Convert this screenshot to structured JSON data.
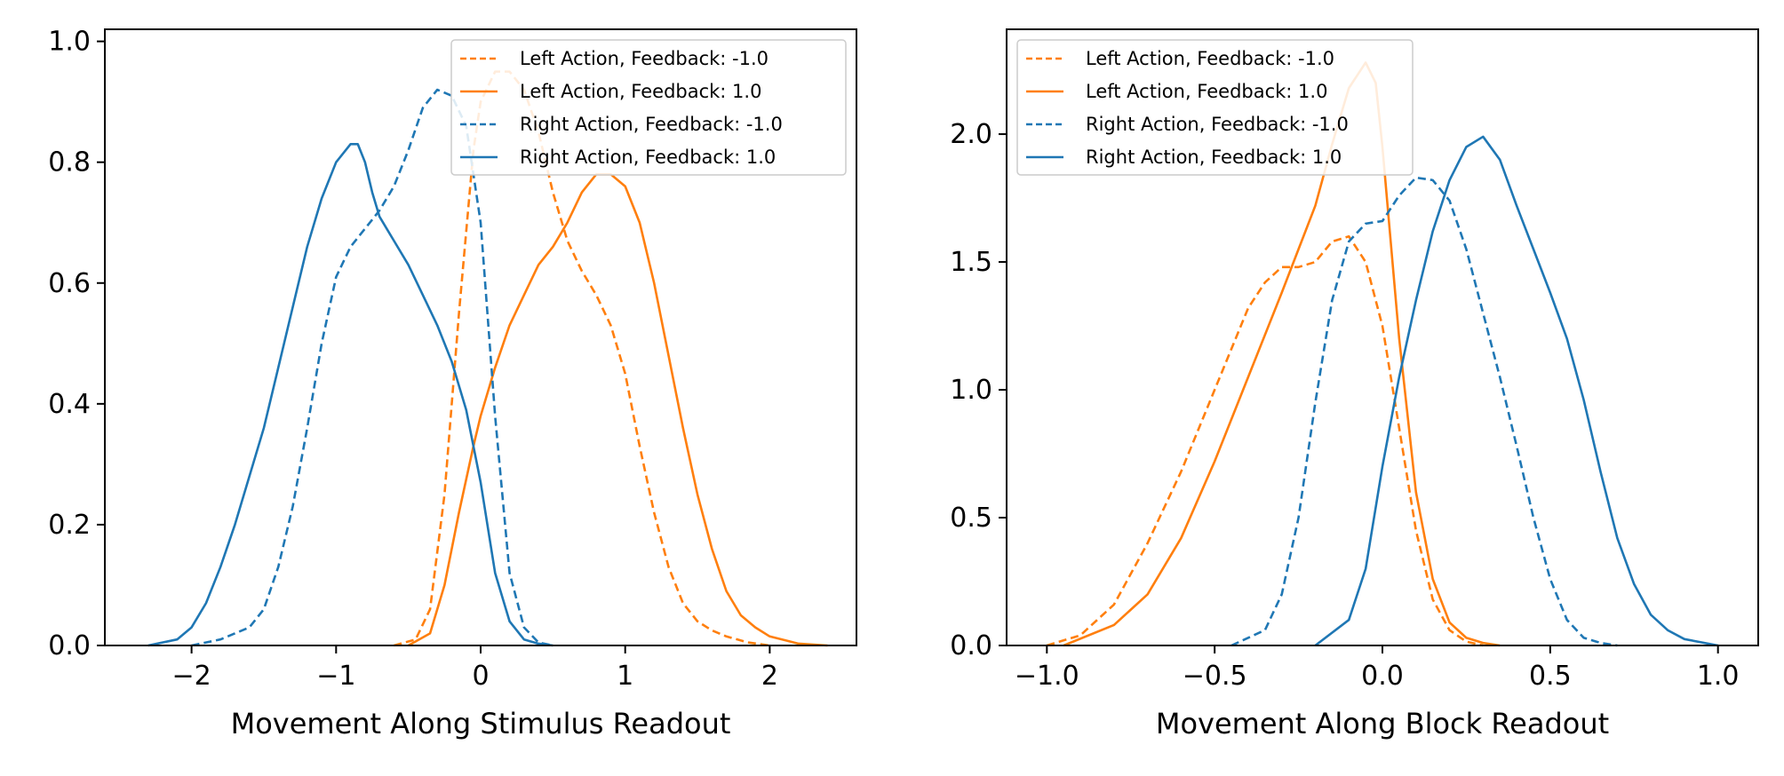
{
  "chart_data": [
    {
      "type": "line",
      "title": "",
      "xlabel": "Movement Along Stimulus Readout",
      "ylabel": "",
      "xlim": [
        -2.6,
        2.6
      ],
      "ylim": [
        0.0,
        1.02
      ],
      "xticks": [
        -2,
        -1,
        0,
        1,
        2
      ],
      "yticks": [
        0.0,
        0.2,
        0.4,
        0.6,
        0.8,
        1.0
      ],
      "xtick_labels": [
        "−2",
        "−1",
        "0",
        "1",
        "2"
      ],
      "ytick_labels": [
        "0.0",
        "0.2",
        "0.4",
        "0.6",
        "0.8",
        "1.0"
      ],
      "grid": false,
      "legend_position": "top-right",
      "series": [
        {
          "name": "Left Action, Feedback: -1.0",
          "color": "#ff7f0e",
          "dash": "dashed",
          "x": [
            -0.6,
            -0.45,
            -0.35,
            -0.25,
            -0.15,
            -0.05,
            0.0,
            0.1,
            0.2,
            0.3,
            0.4,
            0.5,
            0.6,
            0.7,
            0.8,
            0.9,
            1.0,
            1.1,
            1.2,
            1.3,
            1.4,
            1.5,
            1.6,
            1.7,
            1.85,
            2.0
          ],
          "y": [
            0.0,
            0.01,
            0.06,
            0.25,
            0.55,
            0.82,
            0.9,
            0.95,
            0.95,
            0.92,
            0.85,
            0.75,
            0.67,
            0.62,
            0.58,
            0.53,
            0.45,
            0.33,
            0.22,
            0.13,
            0.07,
            0.04,
            0.025,
            0.015,
            0.005,
            0.0
          ]
        },
        {
          "name": "Left Action, Feedback: 1.0",
          "color": "#ff7f0e",
          "dash": "solid",
          "x": [
            -0.5,
            -0.35,
            -0.25,
            -0.15,
            -0.05,
            0.0,
            0.1,
            0.2,
            0.3,
            0.4,
            0.5,
            0.6,
            0.7,
            0.8,
            0.9,
            1.0,
            1.1,
            1.2,
            1.3,
            1.4,
            1.5,
            1.6,
            1.7,
            1.8,
            1.9,
            2.0,
            2.2,
            2.4
          ],
          "y": [
            0.0,
            0.02,
            0.1,
            0.22,
            0.33,
            0.38,
            0.46,
            0.53,
            0.58,
            0.63,
            0.66,
            0.7,
            0.75,
            0.78,
            0.78,
            0.76,
            0.7,
            0.6,
            0.48,
            0.36,
            0.25,
            0.16,
            0.09,
            0.05,
            0.03,
            0.015,
            0.003,
            0.0
          ]
        },
        {
          "name": "Right Action, Feedback: -1.0",
          "color": "#1f77b4",
          "dash": "dashed",
          "x": [
            -2.0,
            -1.8,
            -1.6,
            -1.5,
            -1.4,
            -1.3,
            -1.2,
            -1.1,
            -1.0,
            -0.9,
            -0.8,
            -0.7,
            -0.6,
            -0.5,
            -0.4,
            -0.3,
            -0.2,
            -0.1,
            0.0,
            0.1,
            0.2,
            0.3,
            0.4,
            0.5
          ],
          "y": [
            0.0,
            0.01,
            0.03,
            0.06,
            0.13,
            0.23,
            0.36,
            0.5,
            0.61,
            0.66,
            0.69,
            0.72,
            0.76,
            0.82,
            0.89,
            0.92,
            0.91,
            0.86,
            0.7,
            0.38,
            0.12,
            0.03,
            0.005,
            0.0
          ]
        },
        {
          "name": "Right Action, Feedback: 1.0",
          "color": "#1f77b4",
          "dash": "solid",
          "x": [
            -2.3,
            -2.1,
            -2.0,
            -1.9,
            -1.8,
            -1.7,
            -1.6,
            -1.5,
            -1.4,
            -1.3,
            -1.2,
            -1.1,
            -1.0,
            -0.9,
            -0.85,
            -0.8,
            -0.75,
            -0.7,
            -0.65,
            -0.6,
            -0.5,
            -0.4,
            -0.3,
            -0.2,
            -0.1,
            0.0,
            0.1,
            0.2,
            0.3,
            0.4,
            0.5
          ],
          "y": [
            0.0,
            0.01,
            0.03,
            0.07,
            0.13,
            0.2,
            0.28,
            0.36,
            0.46,
            0.56,
            0.66,
            0.74,
            0.8,
            0.83,
            0.83,
            0.8,
            0.75,
            0.71,
            0.69,
            0.67,
            0.63,
            0.58,
            0.53,
            0.47,
            0.39,
            0.27,
            0.12,
            0.04,
            0.01,
            0.003,
            0.0
          ]
        }
      ]
    },
    {
      "type": "line",
      "title": "",
      "xlabel": "Movement Along Block Readout",
      "ylabel": "",
      "xlim": [
        -1.12,
        1.12
      ],
      "ylim": [
        0.0,
        2.41
      ],
      "xticks": [
        -1.0,
        -0.5,
        0.0,
        0.5,
        1.0
      ],
      "yticks": [
        0.0,
        0.5,
        1.0,
        1.5,
        2.0
      ],
      "xtick_labels": [
        "−1.0",
        "−0.5",
        "0.0",
        "0.5",
        "1.0"
      ],
      "ytick_labels": [
        "0.0",
        "0.5",
        "1.0",
        "1.5",
        "2.0"
      ],
      "grid": false,
      "legend_position": "top-left",
      "series": [
        {
          "name": "Left Action, Feedback: -1.0",
          "color": "#ff7f0e",
          "dash": "dashed",
          "x": [
            -1.0,
            -0.9,
            -0.8,
            -0.7,
            -0.6,
            -0.5,
            -0.4,
            -0.35,
            -0.3,
            -0.25,
            -0.2,
            -0.15,
            -0.1,
            -0.05,
            0.0,
            0.05,
            0.1,
            0.15,
            0.2,
            0.25,
            0.3
          ],
          "y": [
            0.0,
            0.04,
            0.16,
            0.4,
            0.68,
            1.0,
            1.32,
            1.42,
            1.48,
            1.48,
            1.5,
            1.58,
            1.6,
            1.5,
            1.25,
            0.85,
            0.45,
            0.18,
            0.06,
            0.015,
            0.0
          ]
        },
        {
          "name": "Left Action, Feedback: 1.0",
          "color": "#ff7f0e",
          "dash": "solid",
          "x": [
            -0.95,
            -0.8,
            -0.7,
            -0.6,
            -0.5,
            -0.4,
            -0.3,
            -0.25,
            -0.2,
            -0.15,
            -0.1,
            -0.05,
            -0.02,
            0.0,
            0.05,
            0.1,
            0.15,
            0.2,
            0.25,
            0.3,
            0.35
          ],
          "y": [
            0.0,
            0.08,
            0.2,
            0.42,
            0.72,
            1.05,
            1.38,
            1.55,
            1.72,
            1.96,
            2.18,
            2.28,
            2.2,
            1.95,
            1.2,
            0.6,
            0.26,
            0.09,
            0.03,
            0.01,
            0.0
          ]
        },
        {
          "name": "Right Action, Feedback: -1.0",
          "color": "#1f77b4",
          "dash": "dashed",
          "x": [
            -0.45,
            -0.35,
            -0.3,
            -0.25,
            -0.2,
            -0.15,
            -0.1,
            -0.05,
            0.0,
            0.05,
            0.1,
            0.15,
            0.2,
            0.25,
            0.3,
            0.35,
            0.4,
            0.45,
            0.5,
            0.55,
            0.6,
            0.65,
            0.7
          ],
          "y": [
            0.0,
            0.06,
            0.2,
            0.5,
            0.95,
            1.35,
            1.58,
            1.65,
            1.66,
            1.76,
            1.83,
            1.82,
            1.74,
            1.55,
            1.3,
            1.05,
            0.78,
            0.5,
            0.26,
            0.1,
            0.03,
            0.01,
            0.0
          ]
        },
        {
          "name": "Right Action, Feedback: 1.0",
          "color": "#1f77b4",
          "dash": "solid",
          "x": [
            -0.2,
            -0.1,
            -0.05,
            0.0,
            0.05,
            0.1,
            0.15,
            0.2,
            0.25,
            0.3,
            0.35,
            0.4,
            0.45,
            0.5,
            0.55,
            0.6,
            0.65,
            0.7,
            0.75,
            0.8,
            0.85,
            0.9,
            1.0
          ],
          "y": [
            0.0,
            0.1,
            0.3,
            0.7,
            1.05,
            1.35,
            1.62,
            1.82,
            1.95,
            1.99,
            1.9,
            1.72,
            1.55,
            1.38,
            1.2,
            0.96,
            0.68,
            0.42,
            0.24,
            0.12,
            0.06,
            0.025,
            0.0
          ]
        }
      ]
    }
  ]
}
